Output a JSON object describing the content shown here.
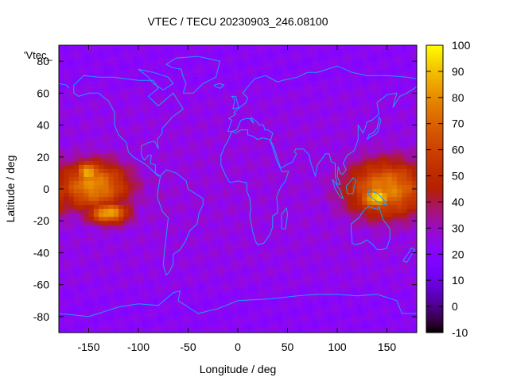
{
  "chart_data": {
    "type": "heatmap",
    "title": "VTEC / TECU 20230903_246.08100",
    "xlabel": "Longitude / deg",
    "ylabel": "Latitude / deg",
    "series_label": "'Vtec_",
    "xlim": [
      -180,
      180
    ],
    "ylim": [
      -90,
      90
    ],
    "xticks": [
      -150,
      -100,
      -50,
      0,
      50,
      100,
      150
    ],
    "yticks": [
      -80,
      -60,
      -40,
      -20,
      0,
      20,
      40,
      60,
      80
    ],
    "colorbar": {
      "range": [
        -10,
        100
      ],
      "ticks": [
        -10,
        0,
        10,
        20,
        30,
        40,
        50,
        60,
        70,
        80,
        90,
        100
      ],
      "palette": "gnuplot-hot"
    },
    "features": [
      {
        "name": "pacific-east-enhancement",
        "lon": -145,
        "lat": 2,
        "lon_sigma": 26,
        "lat_sigma": 11,
        "tec": 80
      },
      {
        "name": "pacific-east-crest-north",
        "lon": -150,
        "lat": 10,
        "lon_sigma": 10,
        "lat_sigma": 5,
        "tec": 90
      },
      {
        "name": "pacific-east-crest-south",
        "lon": -130,
        "lat": -15,
        "lon_sigma": 15,
        "lat_sigma": 5,
        "tec": 85
      },
      {
        "name": "west-pacific-enhancement",
        "lon": 150,
        "lat": 0,
        "lon_sigma": 30,
        "lat_sigma": 13,
        "tec": 78
      },
      {
        "name": "west-pacific-crest",
        "lon": 140,
        "lat": -5,
        "lon_sigma": 13,
        "lat_sigma": 6,
        "tec": 95
      },
      {
        "name": "south-america-moderate",
        "lon": -80,
        "lat": -5,
        "lon_sigma": 20,
        "lat_sigma": 20,
        "tec": 28
      },
      {
        "name": "background",
        "tec": 22
      }
    ]
  }
}
